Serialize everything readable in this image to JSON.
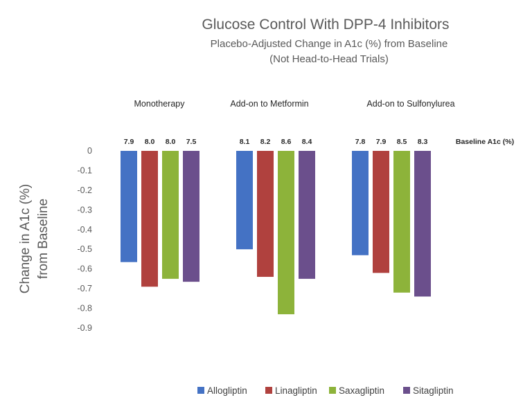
{
  "chart_data": {
    "type": "bar",
    "title": "Glucose Control With DPP-4 Inhibitors",
    "subtitle": [
      "Placebo-Adjusted Change in A1c (%) from Baseline",
      "(Not Head-to-Head Trials)"
    ],
    "ylabel": [
      "Change in A1c (%)",
      "from Baseline"
    ],
    "xlabel": "",
    "ylim": [
      -0.9,
      0
    ],
    "yticks": [
      "0",
      "-0.1",
      "-0.2",
      "-0.3",
      "-0.4",
      "-0.5",
      "-0.6",
      "-0.7",
      "-0.8",
      "-0.9"
    ],
    "grid": false,
    "legend_position": "bottom",
    "categories": [
      "Monotherapy",
      "Add-on to Metformin",
      "Add-on to Sulfonylurea"
    ],
    "baseline_label": "Baseline A1c (%)",
    "series": [
      {
        "name": "Allogliptin",
        "color": "#4472C4",
        "values": [
          -0.565,
          -0.5,
          -0.53
        ],
        "baseline": [
          "7.9",
          "8.1",
          "7.8"
        ]
      },
      {
        "name": "Linagliptin",
        "color": "#B0413E",
        "values": [
          -0.69,
          -0.64,
          -0.62
        ],
        "baseline": [
          "8.0",
          "8.2",
          "7.9"
        ]
      },
      {
        "name": "Saxagliptin",
        "color": "#8DB33A",
        "values": [
          -0.65,
          -0.83,
          -0.72
        ],
        "baseline": [
          "8.0",
          "8.6",
          "8.5"
        ]
      },
      {
        "name": "Sitagliptin",
        "color": "#6B4F8C",
        "values": [
          -0.665,
          -0.65,
          -0.74
        ],
        "baseline": [
          "7.5",
          "8.4",
          "8.3"
        ]
      }
    ]
  }
}
